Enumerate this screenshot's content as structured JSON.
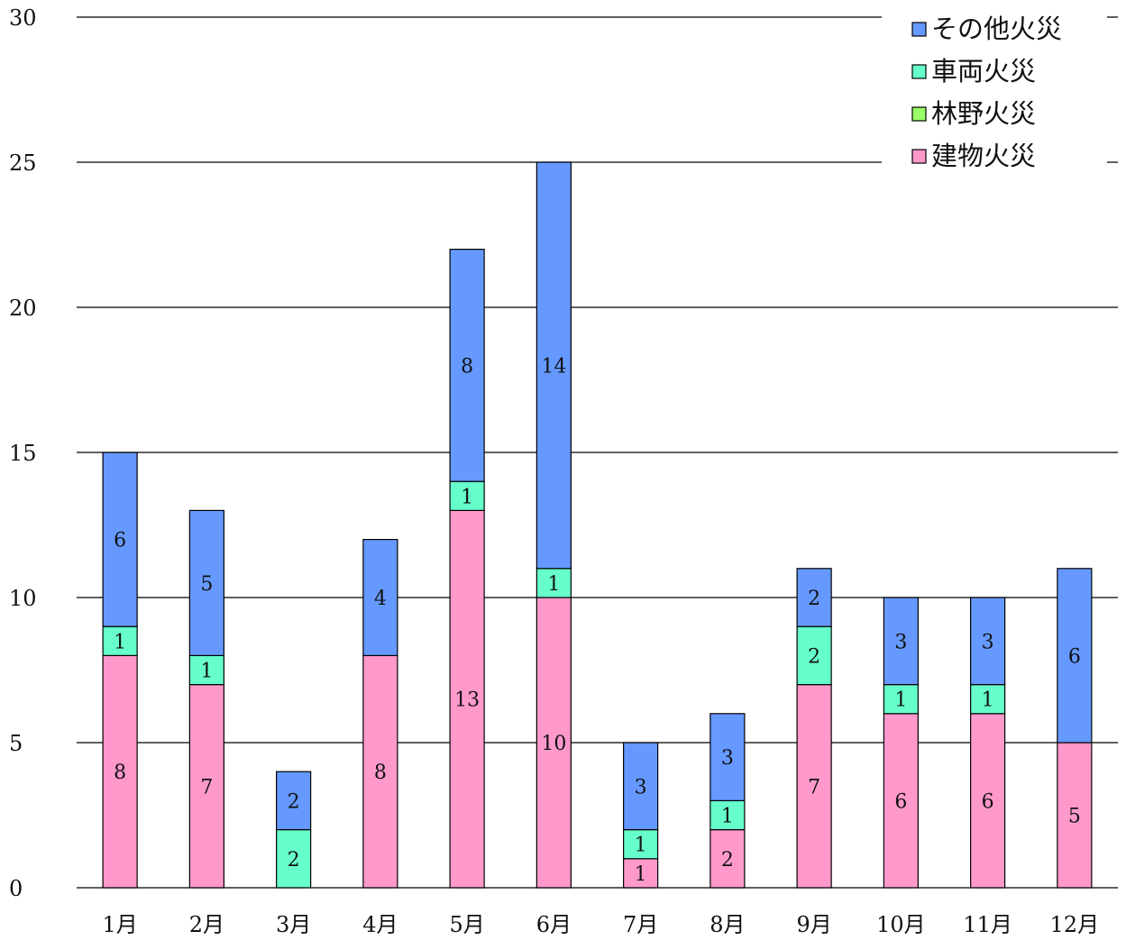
{
  "chart_data": {
    "type": "bar",
    "stacked": true,
    "categories": [
      "1月",
      "2月",
      "3月",
      "4月",
      "5月",
      "6月",
      "7月",
      "8月",
      "9月",
      "10月",
      "11月",
      "12月"
    ],
    "series": [
      {
        "name": "建物火災",
        "color": "#ff99cc",
        "values": [
          8,
          7,
          0,
          8,
          13,
          10,
          1,
          2,
          7,
          6,
          6,
          5
        ]
      },
      {
        "name": "林野火災",
        "color": "#99ff66",
        "values": [
          0,
          0,
          0,
          0,
          0,
          0,
          0,
          0,
          0,
          0,
          0,
          0
        ]
      },
      {
        "name": "車両火災",
        "color": "#66ffcc",
        "values": [
          1,
          1,
          2,
          0,
          1,
          1,
          1,
          1,
          2,
          1,
          1,
          0
        ]
      },
      {
        "name": "その他火災",
        "color": "#6699ff",
        "values": [
          6,
          5,
          2,
          4,
          8,
          14,
          3,
          3,
          2,
          3,
          3,
          6
        ]
      }
    ],
    "ylim": [
      0,
      30
    ],
    "yticks": [
      0,
      5,
      10,
      15,
      20,
      25,
      30
    ],
    "grid": true,
    "legend": "top-right",
    "legend_order": [
      "その他火災",
      "車両火災",
      "林野火災",
      "建物火災"
    ],
    "title": "",
    "xlabel": "",
    "ylabel": ""
  }
}
